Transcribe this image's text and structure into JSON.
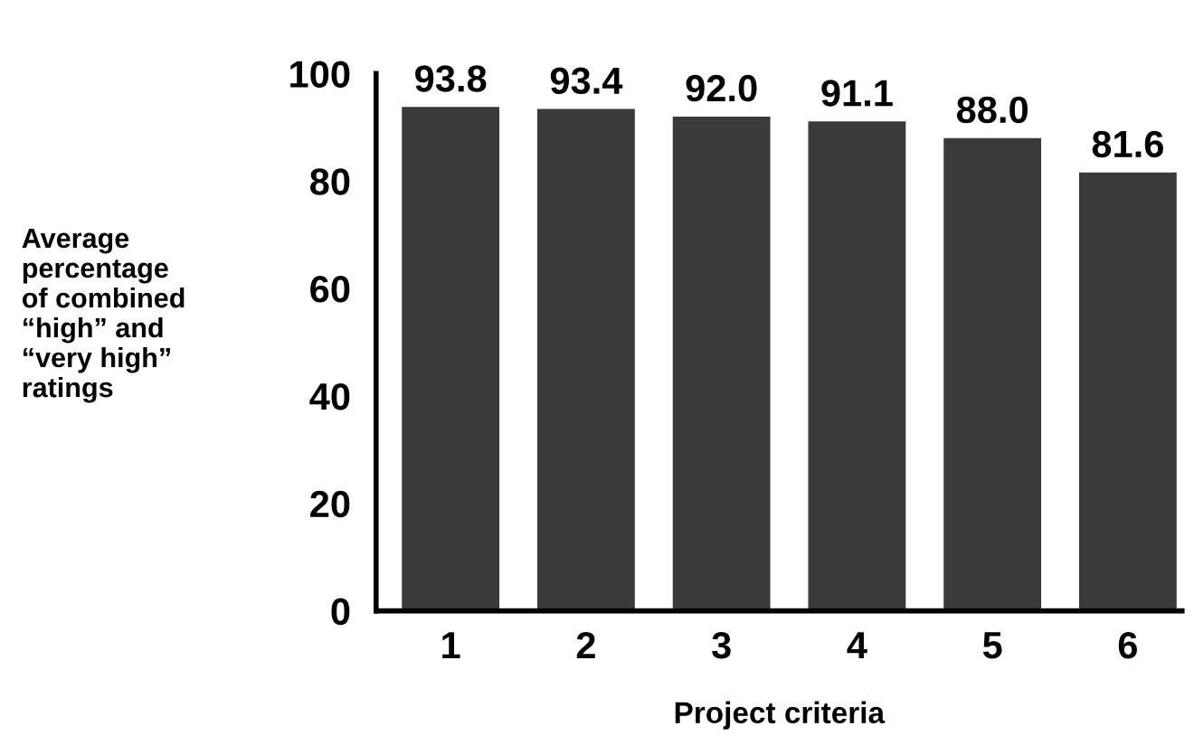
{
  "chart_data": {
    "type": "bar",
    "categories": [
      "1",
      "2",
      "3",
      "4",
      "5",
      "6"
    ],
    "values": [
      93.8,
      93.4,
      92.0,
      91.1,
      88.0,
      81.6
    ],
    "color": "#3a3a3a",
    "ylim": [
      0,
      100
    ],
    "yticks": [
      0,
      20,
      40,
      60,
      80,
      100
    ],
    "ylabel": "Average\npercentage\nof combined\n“high” and\n“very high”\nratings",
    "xlabel": "Project criteria",
    "value_labels": [
      "93.8",
      "93.4",
      "92.0",
      "91.1",
      "88.0",
      "81.6"
    ],
    "grid": false,
    "legend": false
  }
}
